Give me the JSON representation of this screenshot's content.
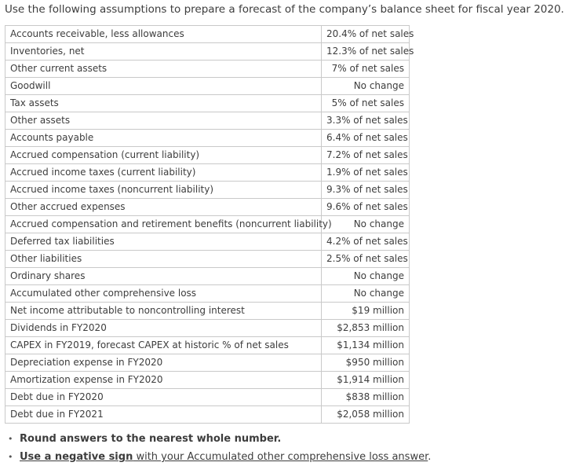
{
  "page": {
    "title": "Use the following assumptions to prepare a forecast of the company’s balance sheet for fiscal year 2020."
  },
  "table": {
    "rows": [
      {
        "label": "Accounts receivable, less allowances",
        "value": "20.4% of net sales"
      },
      {
        "label": "Inventories, net",
        "value": "12.3% of net sales"
      },
      {
        "label": "Other current assets",
        "value": "7% of net sales"
      },
      {
        "label": "Goodwill",
        "value": "No change"
      },
      {
        "label": "Tax assets",
        "value": "5% of net sales"
      },
      {
        "label": "Other assets",
        "value": "3.3% of net sales"
      },
      {
        "label": "Accounts payable",
        "value": "6.4% of net sales"
      },
      {
        "label": "Accrued compensation (current liability)",
        "value": "7.2% of net sales"
      },
      {
        "label": "Accrued income taxes (current liability)",
        "value": "1.9% of net sales"
      },
      {
        "label": "Accrued income taxes (noncurrent liability)",
        "value": "9.3% of net sales"
      },
      {
        "label": "Other accrued expenses",
        "value": "9.6% of net sales"
      },
      {
        "label": "Accrued compensation and retirement benefits (noncurrent liability)",
        "value": "No change"
      },
      {
        "label": "Deferred tax liabilities",
        "value": "4.2% of net sales"
      },
      {
        "label": "Other liabilities",
        "value": "2.5% of net sales"
      },
      {
        "label": "Ordinary shares",
        "value": "No change"
      },
      {
        "label": "Accumulated other comprehensive loss",
        "value": "No change"
      },
      {
        "label": "Net income attributable to noncontrolling interest",
        "value": "$19 million"
      },
      {
        "label": "Dividends in FY2020",
        "value": "$2,853 million"
      },
      {
        "label": "CAPEX in FY2019, forecast CAPEX at historic % of net sales",
        "value": "$1,134 million"
      },
      {
        "label": "Depreciation expense in FY2020",
        "value": "$950 million"
      },
      {
        "label": "Amortization expense in FY2020",
        "value": "$1,914 million"
      },
      {
        "label": "Debt due in FY2020",
        "value": "$838 million"
      },
      {
        "label": "Debt due in FY2021",
        "value": "$2,058 million"
      }
    ]
  },
  "notes": [
    {
      "parts": [
        {
          "text": "Round answers to the nearest whole number.",
          "style": "bold"
        }
      ]
    },
    {
      "parts": [
        {
          "text": "Use a negative sign",
          "style": "bold-underline"
        },
        {
          "text": " with your Accumulated other comprehensive loss answer",
          "style": "underline"
        },
        {
          "text": ".",
          "style": "plain"
        }
      ]
    }
  ]
}
